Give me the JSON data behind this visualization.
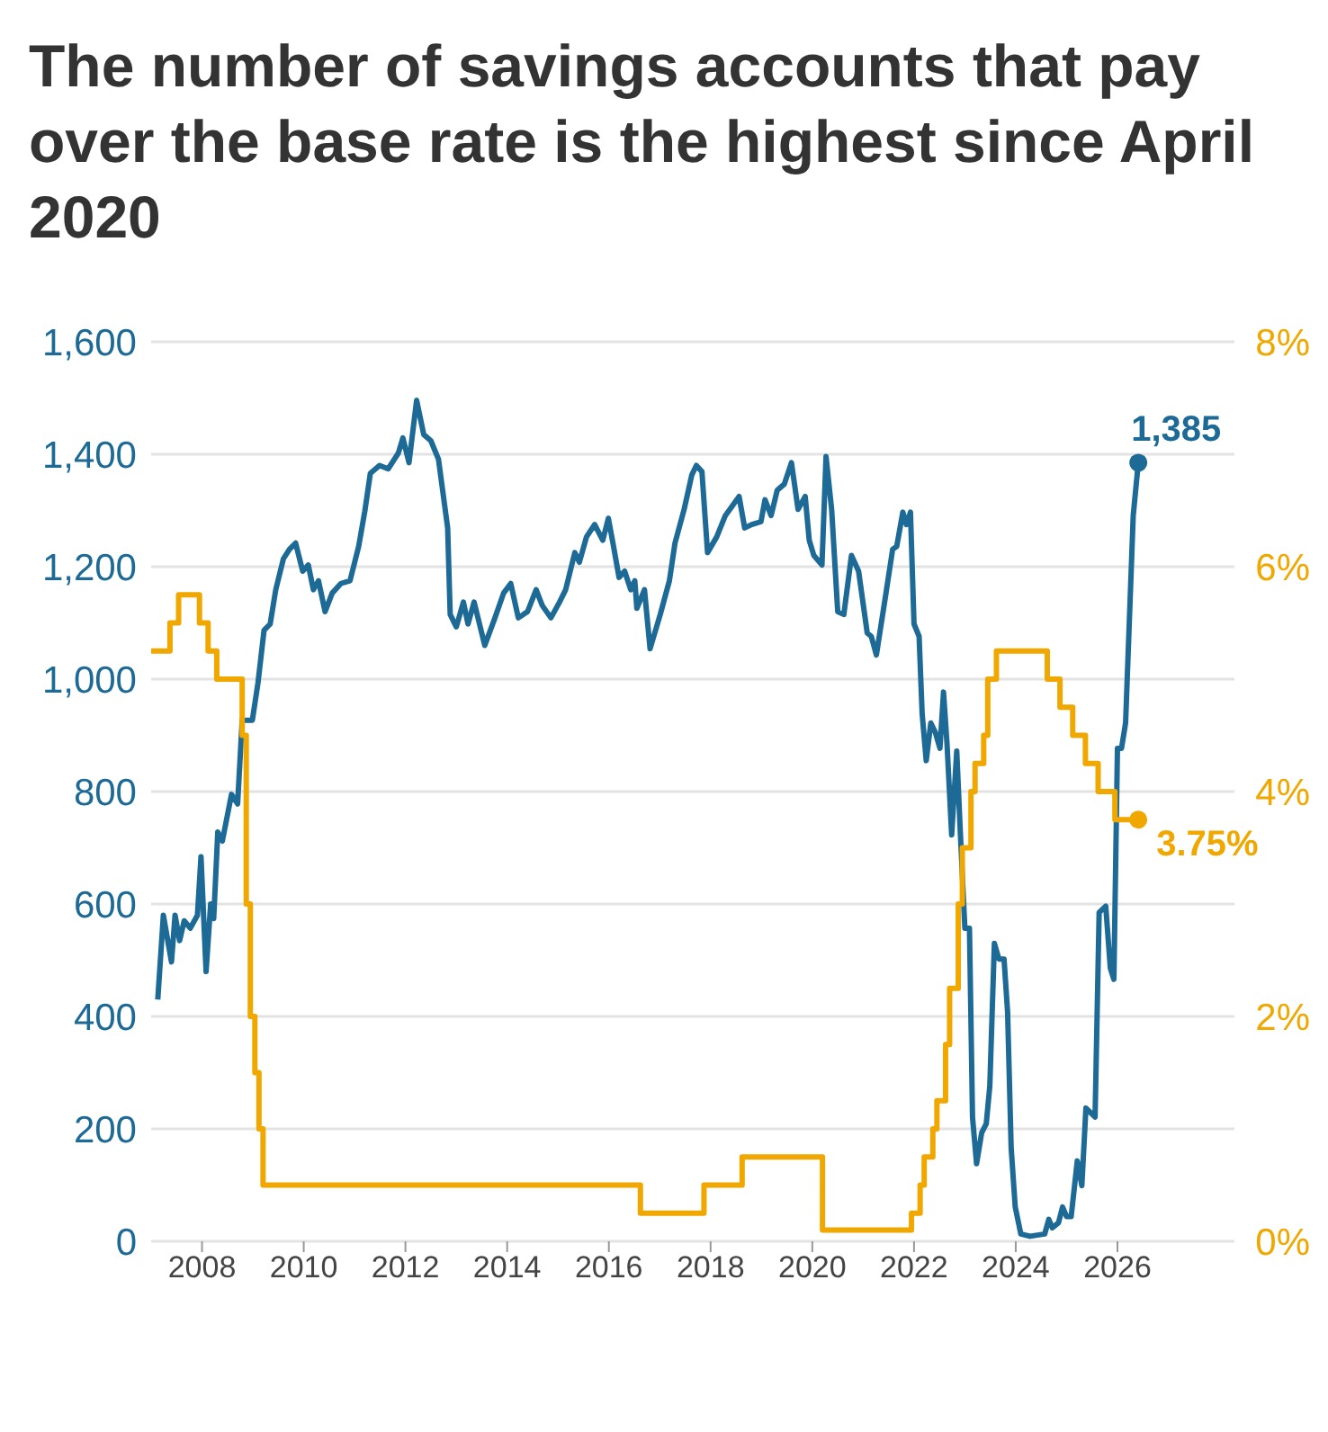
{
  "chart_data": {
    "type": "line",
    "title": "The number of savings accounts that pay over the base rate is the highest since April 2020",
    "xlim": [
      2007,
      2028.3
    ],
    "xticks": [
      2008,
      2010,
      2012,
      2014,
      2016,
      2018,
      2020,
      2022,
      2024,
      2026
    ],
    "ylim": [
      0,
      1600
    ],
    "yticks": [
      {
        "value": 0,
        "label": "0"
      },
      {
        "value": 200,
        "label": "200"
      },
      {
        "value": 400,
        "label": "400"
      },
      {
        "value": 600,
        "label": "600"
      },
      {
        "value": 800,
        "label": "800"
      },
      {
        "value": 1000,
        "label": "1,000"
      },
      {
        "value": 1200,
        "label": "1,200"
      },
      {
        "value": 1400,
        "label": "1,400"
      },
      {
        "value": 1600,
        "label": "1,600"
      }
    ],
    "y2lim": [
      0,
      8
    ],
    "y2ticks": [
      {
        "value": 0,
        "label": "0%"
      },
      {
        "value": 2,
        "label": "2%"
      },
      {
        "value": 4,
        "label": "4%"
      },
      {
        "value": 6,
        "label": "6%"
      },
      {
        "value": 8,
        "label": "8%"
      }
    ],
    "grid": "y",
    "legend": false,
    "series": [
      {
        "color": "#1d6a96",
        "x": [
          2007.13,
          2007.24,
          2007.4,
          2007.47,
          2007.56,
          2007.65,
          2007.77,
          2007.91,
          2007.98,
          2008.08,
          2008.17,
          2008.23,
          2008.31,
          2008.4,
          2008.58,
          2008.7,
          2008.79,
          2008.99,
          2009.1,
          2009.22,
          2009.34,
          2009.45,
          2009.6,
          2009.72,
          2009.84,
          2009.98,
          2010.09,
          2010.19,
          2010.29,
          2010.42,
          2010.56,
          2010.73,
          2010.91,
          2011.08,
          2011.2,
          2011.31,
          2011.49,
          2011.66,
          2011.86,
          2011.95,
          2012.07,
          2012.22,
          2012.36,
          2012.5,
          2012.65,
          2012.83,
          2012.88,
          2013.0,
          2013.14,
          2013.23,
          2013.35,
          2013.56,
          2013.76,
          2013.93,
          2014.07,
          2014.22,
          2014.4,
          2014.57,
          2014.69,
          2014.86,
          2015.03,
          2015.15,
          2015.33,
          2015.42,
          2015.56,
          2015.72,
          2015.88,
          2015.99,
          2016.08,
          2016.2,
          2016.31,
          2016.43,
          2016.51,
          2016.55,
          2016.7,
          2016.81,
          2017.01,
          2017.19,
          2017.3,
          2017.48,
          2017.63,
          2017.72,
          2017.83,
          2017.94,
          2018.12,
          2018.29,
          2018.56,
          2018.67,
          2018.81,
          2018.99,
          2019.07,
          2019.19,
          2019.31,
          2019.45,
          2019.59,
          2019.72,
          2019.86,
          2019.94,
          2020.03,
          2020.19,
          2020.27,
          2020.38,
          2020.5,
          2020.62,
          2020.77,
          2020.91,
          2021.08,
          2021.16,
          2021.26,
          2021.43,
          2021.58,
          2021.66,
          2021.78,
          2021.85,
          2021.93,
          2022.0,
          2022.1,
          2022.16,
          2022.24,
          2022.33,
          2022.42,
          2022.51,
          2022.58,
          2022.65,
          2022.74,
          2022.84,
          2022.91,
          2023.0,
          2023.09,
          2023.15,
          2023.23,
          2023.33,
          2023.42,
          2023.49,
          2023.58,
          2023.67,
          2023.77,
          2023.84,
          2023.91,
          2023.99,
          2024.1,
          2024.28,
          2024.57,
          2024.65,
          2024.72,
          2024.84,
          2024.92,
          2025.0,
          2025.09,
          2025.21,
          2025.3,
          2025.38,
          2025.56,
          2025.64,
          2025.77,
          2025.86,
          2025.93,
          2026.0,
          2026.08,
          2026.16,
          2026.31,
          2026.41
        ],
        "values": [
          430,
          580,
          497,
          580,
          535,
          570,
          557,
          580,
          684,
          480,
          600,
          574,
          728,
          712,
          795,
          778,
          927,
          927,
          993,
          1087,
          1098,
          1159,
          1214,
          1231,
          1242,
          1192,
          1203,
          1159,
          1175,
          1120,
          1153,
          1170,
          1175,
          1236,
          1298,
          1366,
          1380,
          1374,
          1402,
          1429,
          1385,
          1496,
          1435,
          1424,
          1391,
          1269,
          1115,
          1093,
          1137,
          1098,
          1137,
          1060,
          1109,
          1153,
          1170,
          1109,
          1120,
          1159,
          1131,
          1109,
          1137,
          1159,
          1225,
          1208,
          1253,
          1275,
          1247,
          1286,
          1242,
          1181,
          1192,
          1159,
          1175,
          1126,
          1159,
          1054,
          1115,
          1175,
          1242,
          1302,
          1363,
          1380,
          1369,
          1225,
          1253,
          1291,
          1325,
          1269,
          1275,
          1280,
          1319,
          1291,
          1336,
          1347,
          1385,
          1302,
          1325,
          1247,
          1220,
          1203,
          1396,
          1302,
          1120,
          1115,
          1220,
          1192,
          1082,
          1076,
          1043,
          1142,
          1231,
          1236,
          1297,
          1275,
          1297,
          1098,
          1076,
          938,
          855,
          922,
          905,
          877,
          977,
          883,
          723,
          872,
          728,
          557,
          557,
          221,
          138,
          193,
          209,
          276,
          530,
          502,
          502,
          408,
          166,
          61,
          13,
          9,
          13,
          39,
          24,
          33,
          61,
          44,
          44,
          143,
          99,
          237,
          221,
          585,
          596,
          486,
          466,
          877,
          877,
          922,
          1291,
          1385
        ],
        "value_labels": [
          null,
          null,
          null,
          null,
          null,
          null,
          null,
          null,
          null,
          null,
          null,
          null,
          null,
          null,
          null,
          null,
          null,
          null,
          null,
          null,
          null,
          null,
          null,
          null,
          null,
          null,
          null,
          null,
          null,
          null,
          null,
          null,
          null,
          null,
          null,
          null,
          null,
          null,
          null,
          null,
          null,
          null,
          null,
          null,
          null,
          null,
          null,
          null,
          null,
          null,
          null,
          null,
          null,
          null,
          null,
          null,
          null,
          null,
          null,
          null,
          null,
          null,
          null,
          null,
          null,
          null,
          null,
          null,
          null,
          null,
          null,
          null,
          null,
          null,
          null,
          null,
          null,
          null,
          null,
          null,
          null,
          null,
          null,
          null,
          null,
          null,
          null,
          null,
          null,
          null,
          null,
          null,
          null,
          null,
          null,
          null,
          null,
          null,
          null,
          null,
          null,
          null,
          null,
          null,
          null,
          null,
          null,
          null,
          null,
          null,
          null,
          null,
          null,
          null,
          null,
          null,
          null,
          null,
          null,
          null,
          null,
          null,
          null,
          null,
          null,
          null,
          null,
          null,
          null,
          null,
          null,
          null,
          null,
          null,
          null,
          null,
          null,
          null,
          null,
          null,
          null,
          null,
          null,
          null,
          null,
          null,
          null,
          null,
          null,
          null,
          null,
          null,
          null,
          null,
          null,
          null,
          null,
          null,
          null,
          null,
          null,
          "1,385"
        ]
      },
      {
        "color": "#f0a800",
        "type": "step",
        "axis": "y2",
        "value_labels": [
          null,
          null,
          null,
          null,
          null,
          null,
          null,
          null,
          null,
          null,
          null,
          null,
          null,
          null,
          null,
          null,
          null,
          null,
          null,
          null,
          null,
          null,
          null,
          null,
          null,
          null,
          null,
          null,
          null,
          null,
          null,
          null,
          null,
          null,
          null,
          null,
          "3.75%"
        ],
        "x": [
          2007.0,
          2007.37,
          2007.54,
          2007.95,
          2008.12,
          2008.29,
          2008.79,
          2008.87,
          2008.95,
          2009.04,
          2009.12,
          2009.2,
          2016.62,
          2017.87,
          2018.62,
          2020.2,
          2021.95,
          2022.12,
          2022.2,
          2022.37,
          2022.45,
          2022.62,
          2022.7,
          2022.87,
          2022.95,
          2023.12,
          2023.2,
          2023.37,
          2023.45,
          2023.62,
          2024.62,
          2024.87,
          2025.12,
          2025.37,
          2025.62,
          2025.95,
          2026.41
        ],
        "values": [
          5.25,
          5.5,
          5.75,
          5.5,
          5.25,
          5.0,
          4.5,
          3.0,
          2.0,
          1.5,
          1.0,
          0.5,
          0.25,
          0.5,
          0.75,
          0.1,
          0.25,
          0.5,
          0.75,
          1.0,
          1.25,
          1.75,
          2.25,
          3.0,
          3.5,
          4.0,
          4.25,
          4.5,
          5.0,
          5.25,
          5.0,
          4.75,
          4.5,
          4.25,
          4.0,
          3.75,
          3.75
        ]
      }
    ]
  }
}
